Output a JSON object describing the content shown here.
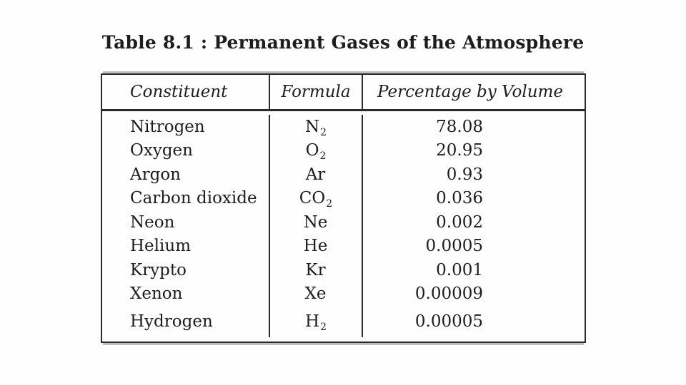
{
  "title": "Table 8.1 : Permanent Gases of the Atmosphere",
  "colors": {
    "text": "#1d1d1d",
    "border": "#2b2b2b",
    "scan_shadow": "#bdbdbd",
    "background": "#fefefe"
  },
  "table": {
    "headers": [
      "Constituent",
      "Formula",
      "Percentage by Volume"
    ],
    "rows": [
      {
        "constituent": "Nitrogen",
        "formula_base": "N",
        "formula_sub": "2",
        "percentage": "78.08"
      },
      {
        "constituent": "Oxygen",
        "formula_base": "O",
        "formula_sub": "2",
        "percentage": "20.95"
      },
      {
        "constituent": "Argon",
        "formula_base": "Ar",
        "formula_sub": "",
        "percentage": "0.93"
      },
      {
        "constituent": "Carbon dioxide",
        "formula_base": "CO",
        "formula_sub": "2",
        "percentage": "0.036"
      },
      {
        "constituent": "Neon",
        "formula_base": "Ne",
        "formula_sub": "",
        "percentage": "0.002"
      },
      {
        "constituent": "Helium",
        "formula_base": "He",
        "formula_sub": "",
        "percentage": "0.0005"
      },
      {
        "constituent": "Krypto",
        "formula_base": "Kr",
        "formula_sub": "",
        "percentage": "0.001"
      },
      {
        "constituent": "Xenon",
        "formula_base": "Xe",
        "formula_sub": "",
        "percentage": "0.00009"
      },
      {
        "constituent": "Hydrogen",
        "formula_base": "H",
        "formula_sub": "2",
        "percentage": "0.00005"
      }
    ]
  }
}
